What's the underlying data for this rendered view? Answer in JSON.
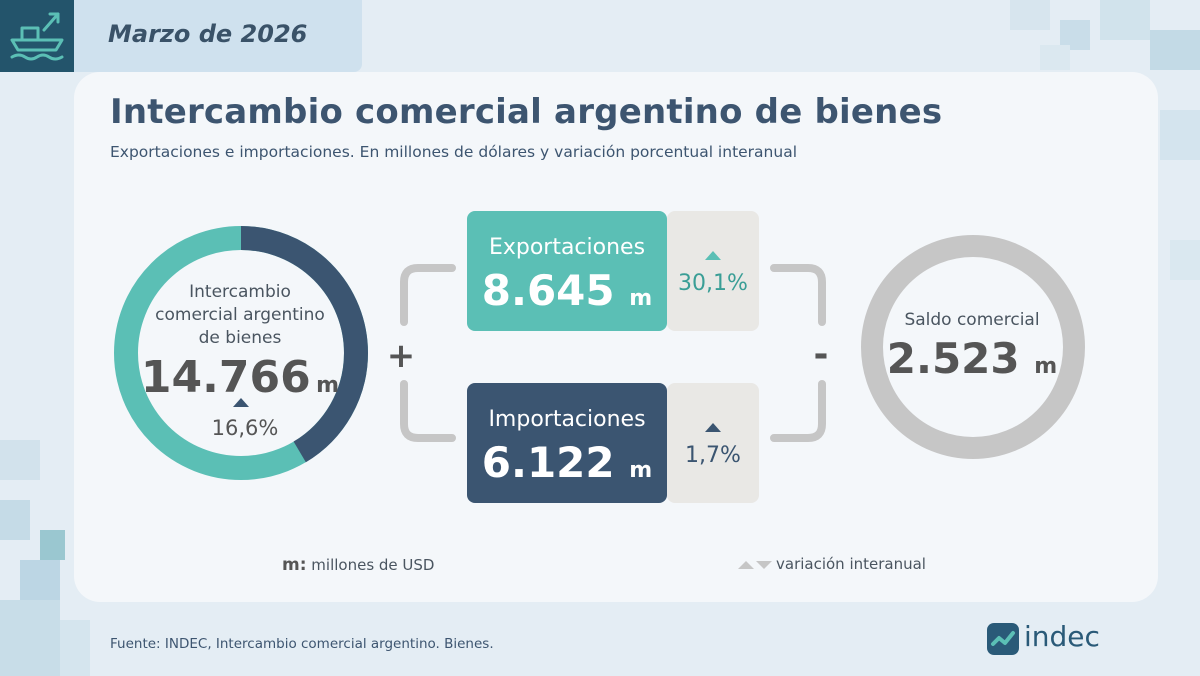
{
  "header": {
    "date": "Marzo de 2026",
    "title": "Intercambio comercial argentino de bienes",
    "subtitle": "Exportaciones e importaciones. En millones de dólares y variación porcentual interanual"
  },
  "intercambio": {
    "label_line1": "Intercambio",
    "label_line2": "comercial argentino",
    "label_line3": "de bienes",
    "value": "14.766",
    "unit": "m",
    "variation": "16,6%",
    "export_share": 0.5855,
    "colors": {
      "exports": "#5bbfb5",
      "imports": "#3b5571"
    }
  },
  "operators": {
    "plus": "+",
    "minus": "-"
  },
  "exportaciones": {
    "label": "Exportaciones",
    "value": "8.645",
    "unit": "m",
    "variation": "30,1%",
    "color": "#5bbfb5"
  },
  "importaciones": {
    "label": "Importaciones",
    "value": "6.122",
    "unit": "m",
    "variation": "1,7%",
    "color": "#3b5571"
  },
  "saldo": {
    "label": "Saldo comercial",
    "value": "2.523",
    "unit": "m"
  },
  "legend": {
    "unit_symbol": "m:",
    "unit_text": "millones de USD",
    "variation_text": "variación interanual"
  },
  "footer": {
    "source": "Fuente: INDEC, Intercambio comercial argentino. Bienes.",
    "brand": "indec"
  }
}
